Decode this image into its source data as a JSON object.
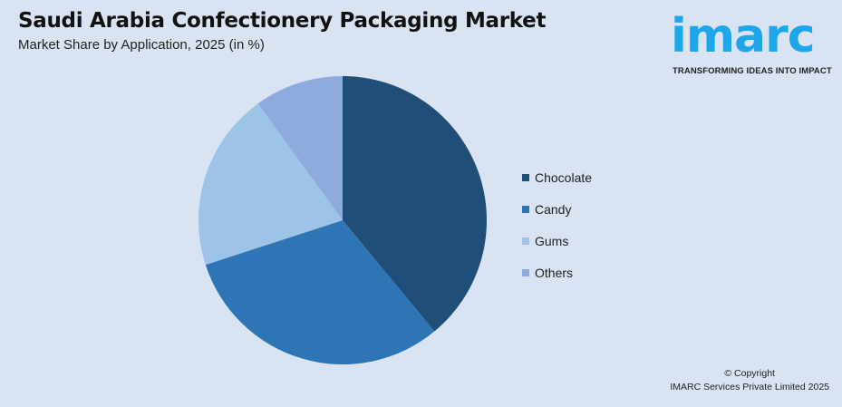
{
  "header": {
    "title": "Saudi Arabia Confectionery Packaging Market",
    "subtitle": "Market Share by Application, 2025 (in %)"
  },
  "logo": {
    "word": "imarc",
    "tagline": "TRANSFORMING IDEAS INTO IMPACT",
    "color": "#1ea7e8"
  },
  "footer": {
    "line1": "© Copyright",
    "line2": "IMARC Services Private Limited 2025"
  },
  "chart_data": {
    "type": "pie",
    "title": "Saudi Arabia Confectionery Packaging Market",
    "subtitle": "Market Share by Application, 2025 (in %)",
    "categories": [
      "Chocolate",
      "Candy",
      "Gums",
      "Others"
    ],
    "values": [
      39,
      31,
      20,
      10
    ],
    "colors": [
      "#1f4e79",
      "#2e75b6",
      "#9dc3e6",
      "#8faadc"
    ],
    "start_angle_deg": 0,
    "direction": "clockwise",
    "legend_position": "right",
    "data_labels": false
  }
}
